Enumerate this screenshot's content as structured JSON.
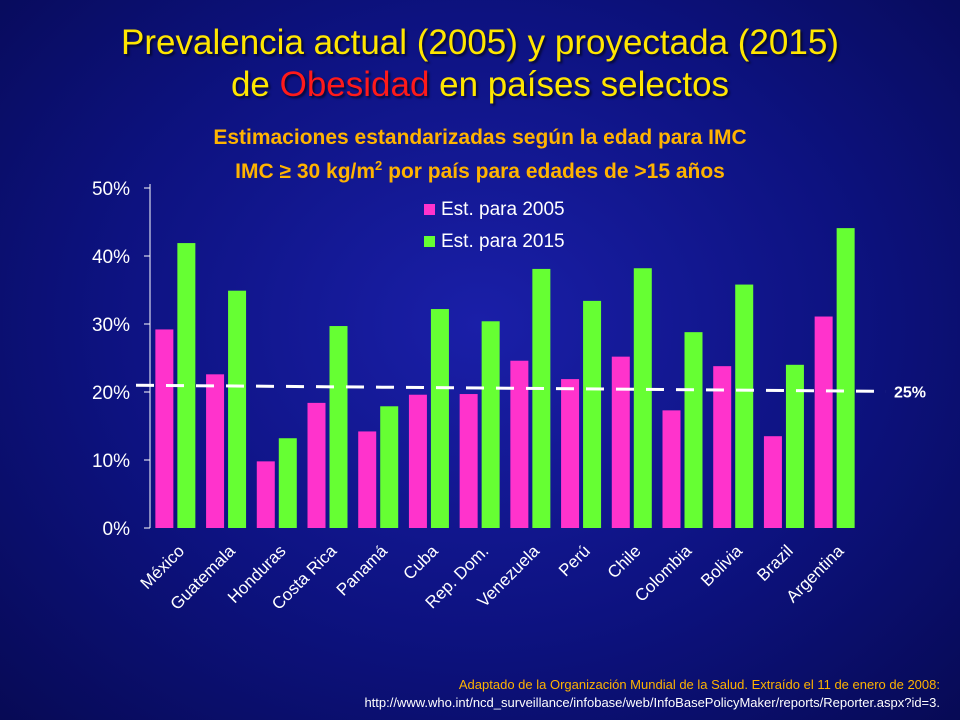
{
  "title": {
    "line1": "Prevalencia actual (2005) y proyectada (2015)",
    "line2_pre": "de ",
    "line2_accent": "Obesidad",
    "line2_post": " en países selectos"
  },
  "subtitle": {
    "line1": "Estimaciones estandarizadas según la edad para IMC",
    "line2_pre": "IMC ≥ 30 kg/m",
    "line2_sup": "2",
    "line2_post": " por país para edades de >15 años"
  },
  "source": {
    "line1": "Adaptado de  la Organización Mundial de la Salud. Extraído el 11 de enero de 2008:",
    "line2": "http://www.who.int/ncd_surveillance/infobase/web/InfoBasePolicyMaker/reports/Reporter.aspx?id=3."
  },
  "colors": {
    "series_2005": "#ff33cc",
    "series_2015": "#66ff33",
    "title": "#ffe600",
    "title_accent": "#ff1a1a",
    "subtitle": "#ffb300",
    "axis_text": "#ffffff"
  },
  "chart_data": {
    "type": "bar",
    "categories": [
      "México",
      "Guatemala",
      "Honduras",
      "Costa Rica",
      "Panamá",
      "Cuba",
      "Rep. Dom.",
      "Venezuela",
      "Perú",
      "Chile",
      "Colombia",
      "Bolivia",
      "Brazil",
      "Argentina"
    ],
    "series": [
      {
        "name": "Est. para 2005",
        "values": [
          29.2,
          22.6,
          9.8,
          18.4,
          14.2,
          19.6,
          19.7,
          24.6,
          21.9,
          25.2,
          17.3,
          23.8,
          13.5,
          31.1
        ]
      },
      {
        "name": "Est. para 2015",
        "values": [
          41.9,
          34.9,
          13.2,
          29.7,
          17.9,
          32.2,
          30.4,
          38.1,
          33.4,
          38.2,
          28.8,
          35.8,
          24.0,
          44.1
        ]
      }
    ],
    "y_ticks": [
      "0%",
      "10%",
      "20%",
      "30%",
      "40%",
      "50%"
    ],
    "ylim": [
      0,
      50
    ],
    "legend_position": "top-center",
    "reference_line": {
      "label": "25%",
      "start_value": 21.0,
      "end_value": 20.1
    }
  }
}
